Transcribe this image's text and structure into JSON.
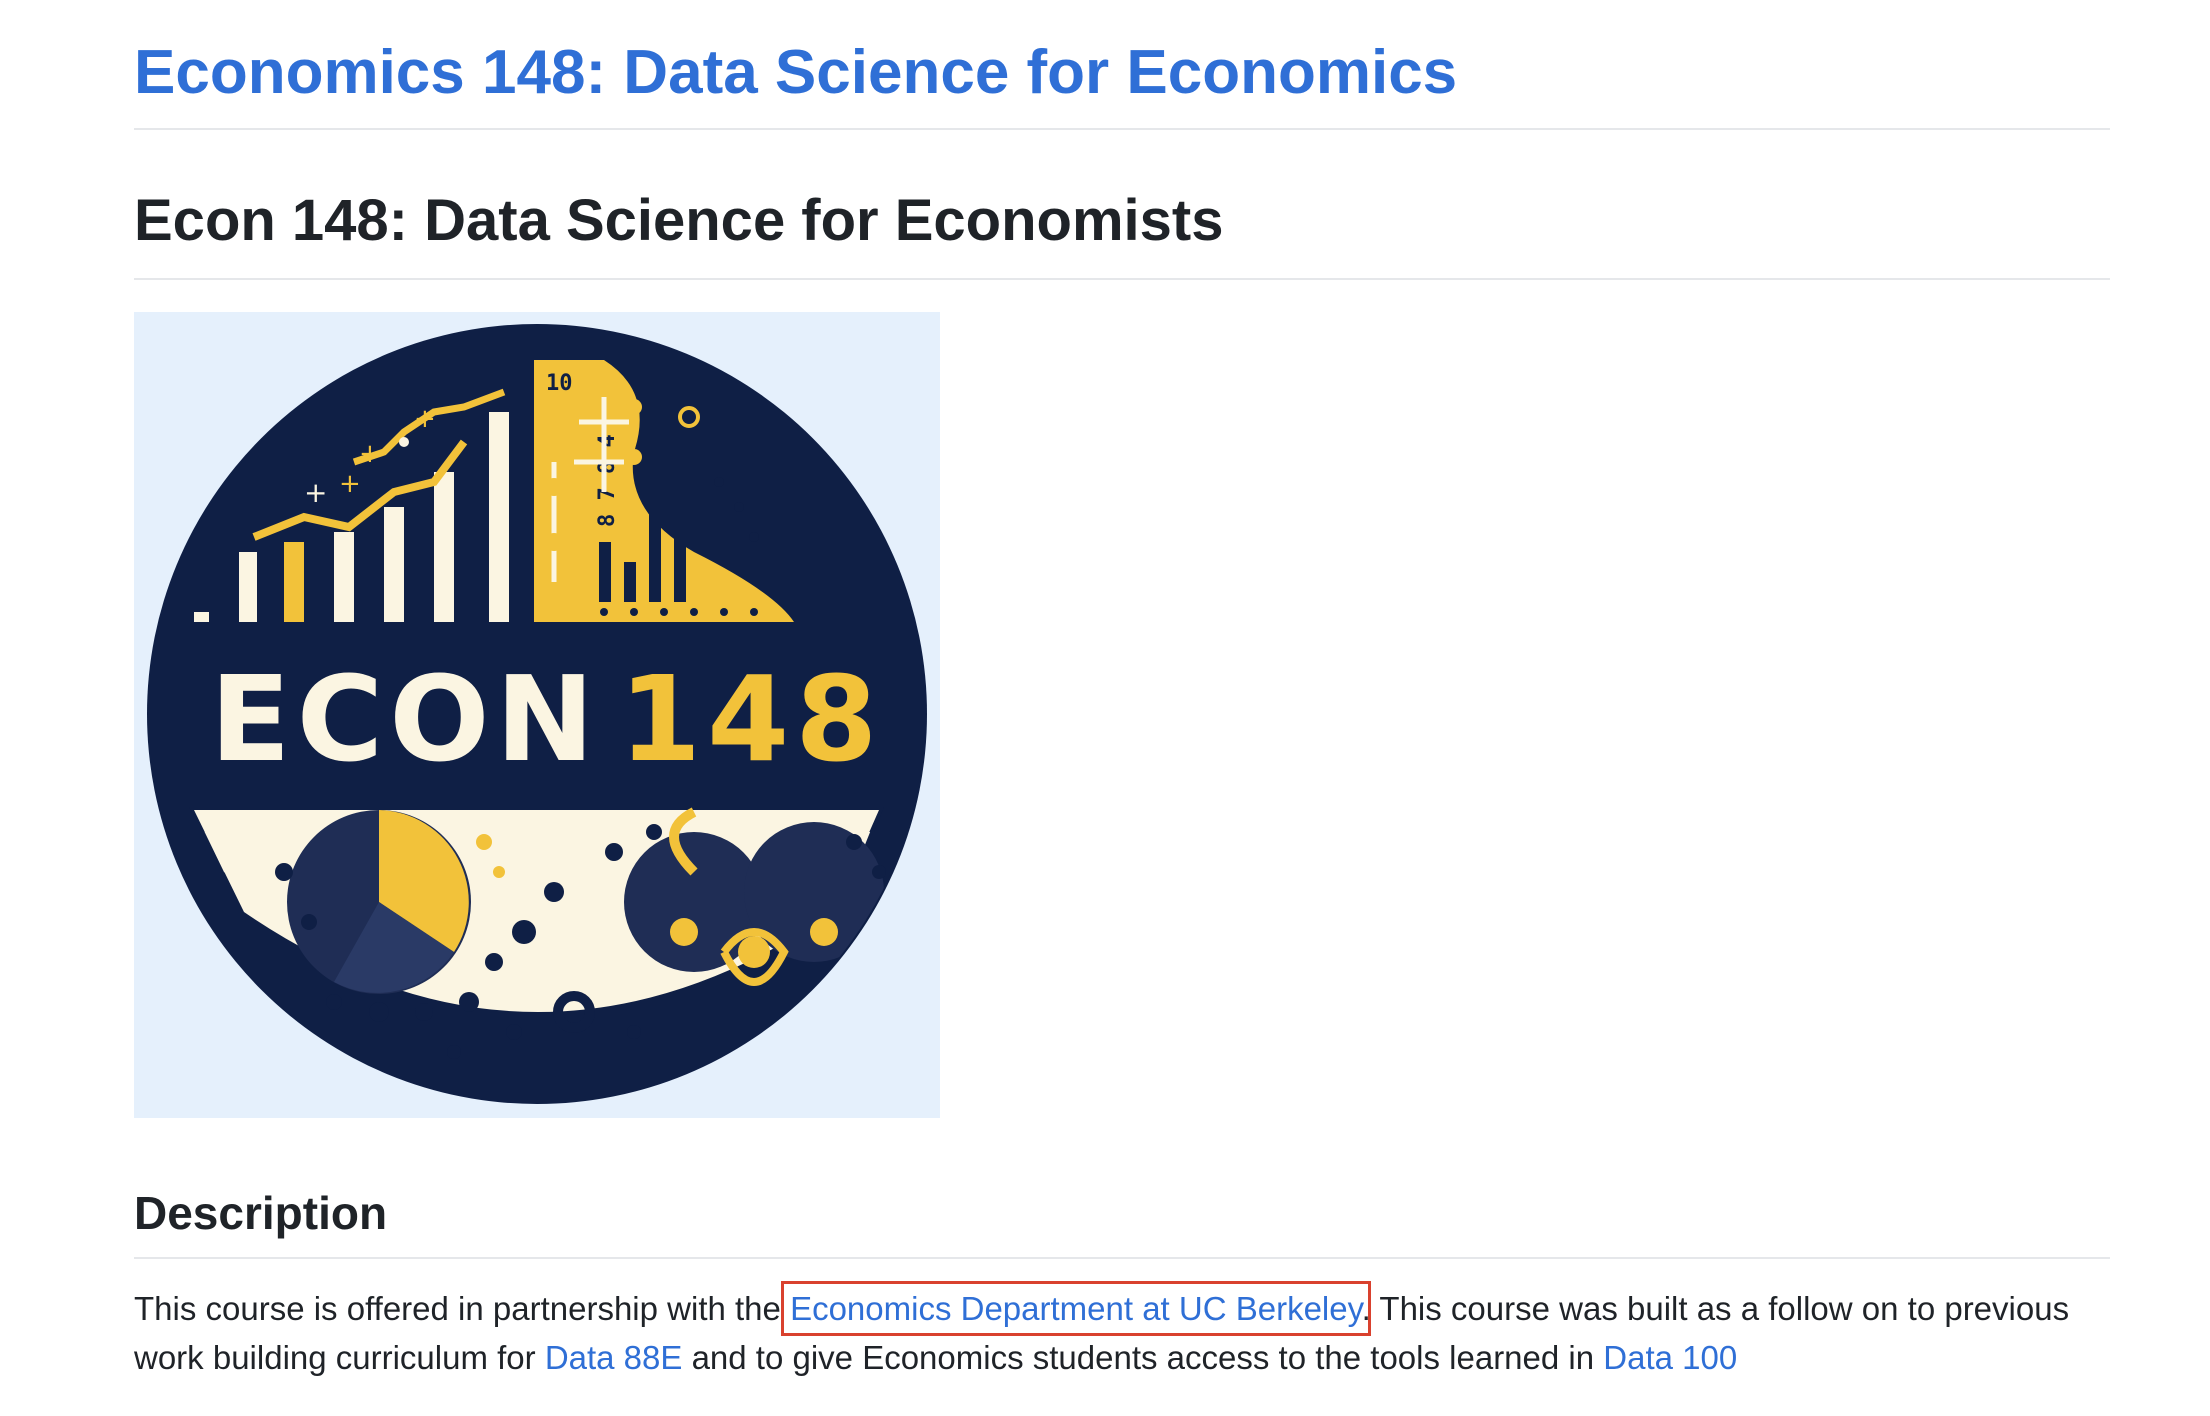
{
  "site_title": "Economics 148: Data Science for Economics",
  "heading": "Econ 148: Data Science for Economists",
  "logo": {
    "text_left": "ECON",
    "text_right": "148",
    "ruler_label": "10",
    "ruler_digits": "8 7 8 4",
    "colors": {
      "navy": "#0f1f45",
      "gold": "#f2c23a",
      "cream": "#fbf5e2",
      "background": "#e5f0fc"
    }
  },
  "description": {
    "heading": "Description",
    "text_1": "This course is offered in partnership with the ",
    "link_1": "Economics Department at UC Berkeley",
    "text_2": ". This course was built as a follow on to previous work building curriculum for ",
    "link_2": "Data 88E",
    "text_3": " and to give Economics students access to the tools learned in ",
    "link_3": "Data 100"
  },
  "highlight_color": "#d9412e"
}
